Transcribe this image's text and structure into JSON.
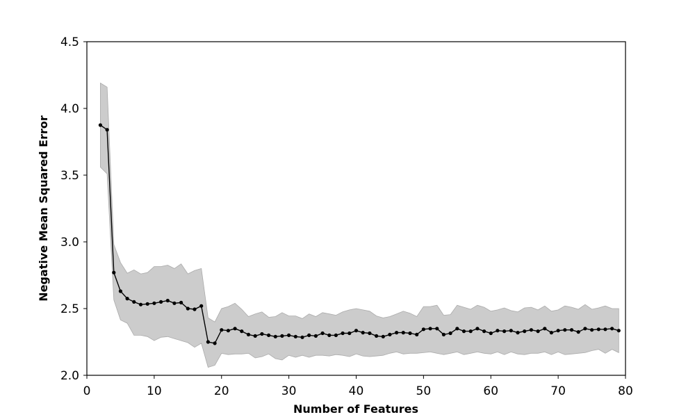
{
  "chart_data": {
    "type": "line",
    "title": "",
    "xlabel": "Number of Features",
    "ylabel": "Negative Mean Squared Error",
    "xlim": [
      0,
      80
    ],
    "ylim": [
      2.0,
      4.5
    ],
    "xticks": [
      0,
      10,
      20,
      30,
      40,
      50,
      60,
      70,
      80
    ],
    "yticks": [
      2.0,
      2.5,
      3.0,
      3.5,
      4.0,
      4.5
    ],
    "xtick_labels": [
      "0",
      "10",
      "20",
      "30",
      "40",
      "50",
      "60",
      "70",
      "80"
    ],
    "ytick_labels": [
      "2.0",
      "2.5",
      "3.0",
      "3.5",
      "4.0",
      "4.5"
    ],
    "grid": false,
    "colors": {
      "line": "#000000",
      "band": "#cccccc",
      "band_edge": "#aaaaaa"
    },
    "x": [
      2,
      3,
      4,
      5,
      6,
      7,
      8,
      9,
      10,
      11,
      12,
      13,
      14,
      15,
      16,
      17,
      18,
      19,
      20,
      21,
      22,
      23,
      24,
      25,
      26,
      27,
      28,
      29,
      30,
      31,
      32,
      33,
      34,
      35,
      36,
      37,
      38,
      39,
      40,
      41,
      42,
      43,
      44,
      45,
      46,
      47,
      48,
      49,
      50,
      51,
      52,
      53,
      54,
      55,
      56,
      57,
      58,
      59,
      60,
      61,
      62,
      63,
      64,
      65,
      66,
      67,
      68,
      69,
      70,
      71,
      72,
      73,
      74,
      75,
      76,
      77,
      78,
      79
    ],
    "mean": [
      3.875,
      3.84,
      2.77,
      2.63,
      2.575,
      2.55,
      2.53,
      2.535,
      2.54,
      2.55,
      2.56,
      2.54,
      2.545,
      2.5,
      2.495,
      2.52,
      2.25,
      2.24,
      2.34,
      2.335,
      2.35,
      2.33,
      2.305,
      2.295,
      2.31,
      2.3,
      2.29,
      2.295,
      2.3,
      2.29,
      2.285,
      2.3,
      2.295,
      2.315,
      2.3,
      2.3,
      2.315,
      2.315,
      2.335,
      2.32,
      2.315,
      2.295,
      2.29,
      2.305,
      2.32,
      2.32,
      2.315,
      2.305,
      2.345,
      2.35,
      2.35,
      2.305,
      2.315,
      2.35,
      2.33,
      2.33,
      2.35,
      2.33,
      2.315,
      2.335,
      2.33,
      2.335,
      2.32,
      2.33,
      2.34,
      2.33,
      2.35,
      2.32,
      2.335,
      2.34,
      2.34,
      2.325,
      2.35,
      2.34,
      2.345,
      2.345,
      2.35,
      2.335
    ],
    "upper": [
      4.19,
      4.16,
      2.98,
      2.845,
      2.765,
      2.79,
      2.76,
      2.77,
      2.815,
      2.815,
      2.825,
      2.8,
      2.835,
      2.76,
      2.785,
      2.8,
      2.43,
      2.4,
      2.5,
      2.515,
      2.54,
      2.495,
      2.44,
      2.46,
      2.475,
      2.435,
      2.44,
      2.47,
      2.445,
      2.445,
      2.425,
      2.46,
      2.44,
      2.47,
      2.46,
      2.45,
      2.475,
      2.49,
      2.5,
      2.49,
      2.48,
      2.445,
      2.43,
      2.44,
      2.46,
      2.48,
      2.465,
      2.44,
      2.515,
      2.515,
      2.525,
      2.45,
      2.455,
      2.525,
      2.51,
      2.495,
      2.525,
      2.51,
      2.48,
      2.49,
      2.505,
      2.485,
      2.475,
      2.505,
      2.51,
      2.49,
      2.52,
      2.48,
      2.49,
      2.52,
      2.51,
      2.495,
      2.53,
      2.495,
      2.505,
      2.52,
      2.5,
      2.5
    ],
    "lower": [
      3.56,
      3.51,
      2.565,
      2.415,
      2.39,
      2.3,
      2.3,
      2.29,
      2.26,
      2.285,
      2.29,
      2.275,
      2.26,
      2.245,
      2.21,
      2.24,
      2.06,
      2.075,
      2.165,
      2.155,
      2.16,
      2.16,
      2.165,
      2.13,
      2.14,
      2.16,
      2.125,
      2.115,
      2.15,
      2.135,
      2.15,
      2.135,
      2.15,
      2.15,
      2.145,
      2.155,
      2.15,
      2.14,
      2.16,
      2.145,
      2.14,
      2.145,
      2.15,
      2.165,
      2.175,
      2.16,
      2.165,
      2.165,
      2.17,
      2.175,
      2.165,
      2.155,
      2.165,
      2.175,
      2.155,
      2.165,
      2.175,
      2.165,
      2.16,
      2.175,
      2.155,
      2.175,
      2.16,
      2.155,
      2.165,
      2.165,
      2.175,
      2.155,
      2.175,
      2.155,
      2.16,
      2.165,
      2.17,
      2.185,
      2.195,
      2.165,
      2.195,
      2.17
    ]
  }
}
